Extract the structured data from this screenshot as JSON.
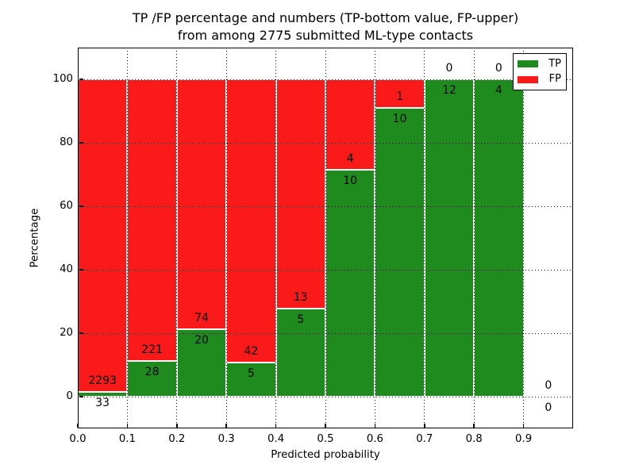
{
  "title": {
    "line1": "TP /FP percentage and numbers (TP-bottom value, FP-upper)",
    "line2": "from among 2775 submitted ML-type contacts"
  },
  "axes": {
    "ylabel": "Percentage",
    "xlabel": "Predicted probability",
    "ytick_values": [
      0,
      20,
      40,
      60,
      80,
      100
    ],
    "ytick_labels": [
      "0",
      "20",
      "40",
      "60",
      "80",
      "100"
    ],
    "xtick_labels": [
      "0.0",
      "0.1",
      "0.2",
      "0.3",
      "0.4",
      "0.5",
      "0.6",
      "0.7",
      "0.8",
      "0.9"
    ]
  },
  "legend": {
    "items": [
      {
        "label": "TP",
        "color": "#1f8b1f"
      },
      {
        "label": "FP",
        "color": "#fa1a1a"
      }
    ]
  },
  "colors": {
    "tp_green": "#1f8b1f",
    "fp_red": "#fa1a1a",
    "grid": "#000000",
    "background": "#ffffff"
  },
  "chart_data": {
    "type": "bar",
    "stacked": true,
    "title": "TP /FP percentage and numbers (TP-bottom value, FP-upper) from among 2775 submitted ML-type contacts",
    "xlabel": "Predicted probability",
    "ylabel": "Percentage",
    "xlim": [
      0.0,
      1.0
    ],
    "ylim": [
      -10,
      110
    ],
    "grid": "dotted",
    "legend_position": "upper right",
    "total_contacts": 2775,
    "bin_edges": [
      0.0,
      0.1,
      0.2,
      0.3,
      0.4,
      0.5,
      0.6,
      0.7,
      0.8,
      0.9,
      1.0
    ],
    "series": [
      {
        "name": "TP",
        "color": "#1f8b1f",
        "counts": [
          33,
          28,
          20,
          5,
          5,
          10,
          10,
          12,
          4,
          0
        ]
      },
      {
        "name": "FP",
        "color": "#fa1a1a",
        "counts": [
          2293,
          221,
          74,
          42,
          13,
          4,
          1,
          0,
          0,
          0
        ]
      }
    ],
    "tp_pct": [
      1.42,
      11.24,
      21.28,
      10.64,
      27.78,
      71.43,
      90.91,
      100,
      100,
      0
    ],
    "fp_pct": [
      98.58,
      88.76,
      78.72,
      89.36,
      72.22,
      28.57,
      9.09,
      0,
      0,
      0
    ]
  }
}
